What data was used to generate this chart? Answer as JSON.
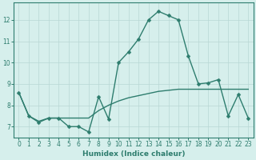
{
  "xlabel": "Humidex (Indice chaleur)",
  "bg_color": "#d6efec",
  "line_color": "#2e7d6e",
  "grid_color": "#b8d8d4",
  "line1_x": [
    0,
    1,
    2,
    3,
    4,
    5,
    6,
    7,
    8,
    9,
    10,
    11,
    12,
    13,
    14,
    15,
    16,
    17,
    18,
    19,
    20,
    21,
    22,
    23
  ],
  "line1_y": [
    8.6,
    7.5,
    7.2,
    7.4,
    7.4,
    7.0,
    7.0,
    6.75,
    8.4,
    7.35,
    10.0,
    10.5,
    11.1,
    12.0,
    12.4,
    12.2,
    12.0,
    10.3,
    9.0,
    9.05,
    9.2,
    7.5,
    8.5,
    7.4
  ],
  "line2_x": [
    0,
    1,
    2,
    3,
    4,
    5,
    6,
    7,
    8,
    9,
    10,
    11,
    12,
    13,
    14,
    15,
    16,
    17,
    18,
    19,
    20,
    21,
    22,
    23
  ],
  "line2_y": [
    8.6,
    7.5,
    7.25,
    7.4,
    7.4,
    7.4,
    7.4,
    7.4,
    7.75,
    8.0,
    8.2,
    8.35,
    8.45,
    8.55,
    8.65,
    8.7,
    8.75,
    8.75,
    8.75,
    8.75,
    8.75,
    8.75,
    8.75,
    8.75
  ],
  "ylim": [
    6.5,
    12.8
  ],
  "yticks": [
    7,
    8,
    9,
    10,
    11,
    12
  ],
  "xticks": [
    0,
    1,
    2,
    3,
    4,
    5,
    6,
    7,
    8,
    9,
    10,
    11,
    12,
    13,
    14,
    15,
    16,
    17,
    18,
    19,
    20,
    21,
    22,
    23
  ],
  "markersize": 2.5,
  "linewidth": 1.0,
  "label_fontsize": 6.5,
  "tick_fontsize": 5.5
}
